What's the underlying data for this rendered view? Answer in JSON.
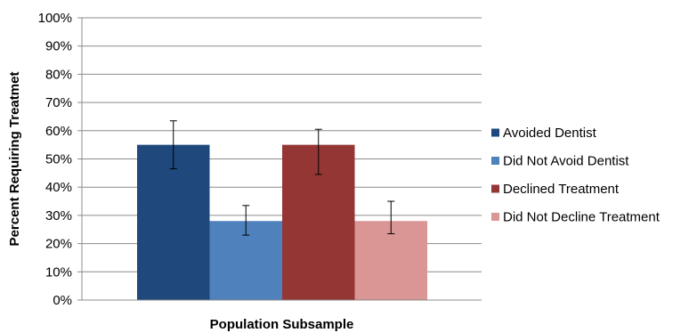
{
  "chart_data": {
    "type": "bar",
    "title": "",
    "xlabel": "Population Subsample",
    "ylabel": "Percent Requiring Treatmet",
    "ylim": [
      0,
      100
    ],
    "yticks": [
      "0%",
      "10%",
      "20%",
      "30%",
      "40%",
      "50%",
      "60%",
      "70%",
      "80%",
      "90%",
      "100%"
    ],
    "grid": true,
    "legend_position": "right",
    "series": [
      {
        "name": "Avoided Dentist",
        "value": 55,
        "error_low": 46.5,
        "error_high": 63.5,
        "color": "#1f497d"
      },
      {
        "name": "Did Not Avoid Dentist",
        "value": 28,
        "error_low": 23,
        "error_high": 33.5,
        "color": "#4f81bd"
      },
      {
        "name": "Declined Treatment",
        "value": 55,
        "error_low": 44.5,
        "error_high": 60.5,
        "color": "#943634"
      },
      {
        "name": "Did Not Decline Treatment",
        "value": 28,
        "error_low": 23.5,
        "error_high": 35,
        "color": "#d99694"
      }
    ]
  }
}
